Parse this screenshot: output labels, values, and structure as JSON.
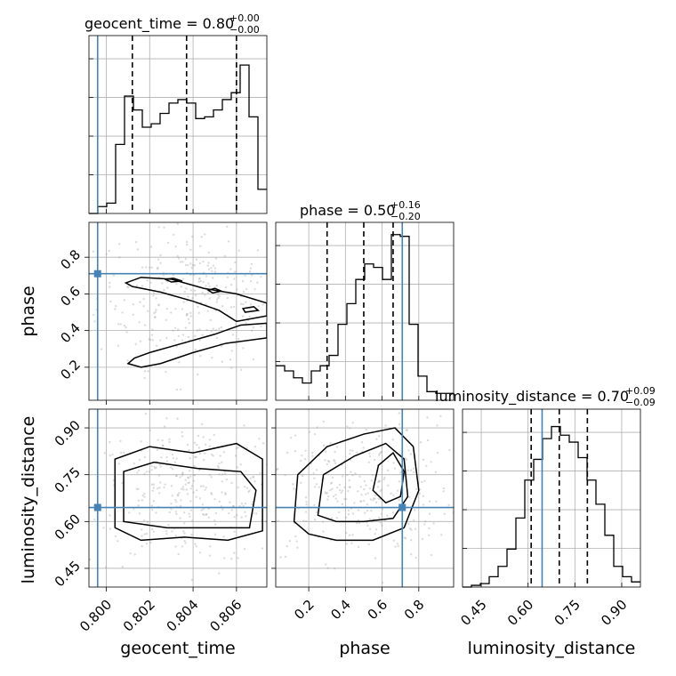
{
  "chart_data": {
    "type": "corner",
    "parameters": [
      "geocent_time",
      "phase",
      "luminosity_distance"
    ],
    "truths": {
      "geocent_time": 0.7996,
      "phase": 0.71,
      "luminosity_distance": 0.645
    },
    "titles": [
      {
        "param": "geocent_time",
        "text": "geocent_time = 0.80",
        "plus": "+0.00",
        "minus": "−0.00"
      },
      {
        "param": "phase",
        "text": "phase = 0.50",
        "plus": "+0.16",
        "minus": "−0.20"
      },
      {
        "param": "luminosity_distance",
        "text": "luminosity_distance = 0.70",
        "plus": "+0.09",
        "minus": "−0.09"
      }
    ],
    "axis_labels": {
      "geocent_time": "geocent_time",
      "phase": "phase",
      "luminosity_distance": "luminosity_distance"
    },
    "ranges": {
      "geocent_time": [
        0.7992,
        0.8074
      ],
      "phase": [
        0.02,
        0.99
      ],
      "luminosity_distance": [
        0.39,
        0.96
      ]
    },
    "ticks": {
      "geocent_time": {
        "values": [
          0.8,
          0.802,
          0.804,
          0.806
        ],
        "labels": [
          "0.800",
          "0.802",
          "0.804",
          "0.806"
        ]
      },
      "phase_x": {
        "values": [
          0.2,
          0.4,
          0.6,
          0.8
        ],
        "labels": [
          "0.2",
          "0.4",
          "0.6",
          "0.8"
        ]
      },
      "phase_y": {
        "values": [
          0.2,
          0.4,
          0.6,
          0.8
        ],
        "labels": [
          "0.2",
          "0.4",
          "0.6",
          "0.8"
        ]
      },
      "luminosity_distance": {
        "values": [
          0.45,
          0.6,
          0.75,
          0.9
        ],
        "labels": [
          "0.45",
          "0.60",
          "0.75",
          "0.90"
        ]
      }
    },
    "quantiles": {
      "geocent_time": [
        0.8012,
        0.8037,
        0.806
      ],
      "phase": [
        0.3,
        0.5,
        0.66
      ],
      "luminosity_distance": [
        0.61,
        0.7,
        0.79
      ]
    },
    "histograms": {
      "geocent_time": [
        0.0,
        0.04,
        0.06,
        0.4,
        0.68,
        0.6,
        0.5,
        0.52,
        0.58,
        0.64,
        0.66,
        0.64,
        0.55,
        0.56,
        0.6,
        0.66,
        0.7,
        0.86,
        0.56,
        0.14
      ],
      "phase": [
        0.2,
        0.17,
        0.13,
        0.1,
        0.17,
        0.2,
        0.26,
        0.44,
        0.56,
        0.7,
        0.79,
        0.77,
        0.7,
        0.96,
        0.95,
        0.44,
        0.14,
        0.05,
        0.04,
        0.04
      ],
      "luminosity_distance": [
        0.0,
        0.01,
        0.02,
        0.06,
        0.12,
        0.22,
        0.4,
        0.62,
        0.74,
        0.86,
        0.93,
        0.88,
        0.84,
        0.75,
        0.62,
        0.48,
        0.3,
        0.12,
        0.06,
        0.03
      ]
    },
    "density_contours": {
      "phase_vs_geocent_time": [
        [
          [
            0.8009,
            0.66
          ],
          [
            0.8016,
            0.69
          ],
          [
            0.803,
            0.68
          ],
          [
            0.8045,
            0.63
          ],
          [
            0.806,
            0.6
          ],
          [
            0.8074,
            0.55
          ],
          [
            0.8074,
            0.48
          ],
          [
            0.806,
            0.45
          ],
          [
            0.8052,
            0.51
          ],
          [
            0.804,
            0.56
          ],
          [
            0.8025,
            0.61
          ],
          [
            0.8012,
            0.64
          ]
        ],
        [
          [
            0.8013,
            0.25
          ],
          [
            0.802,
            0.28
          ],
          [
            0.8035,
            0.33
          ],
          [
            0.805,
            0.38
          ],
          [
            0.8062,
            0.43
          ],
          [
            0.8074,
            0.44
          ],
          [
            0.8074,
            0.36
          ],
          [
            0.8055,
            0.33
          ],
          [
            0.804,
            0.28
          ],
          [
            0.8025,
            0.22
          ],
          [
            0.8016,
            0.2
          ],
          [
            0.801,
            0.22
          ]
        ],
        [
          [
            0.8027,
            0.68
          ],
          [
            0.8031,
            0.685
          ],
          [
            0.8035,
            0.67
          ],
          [
            0.803,
            0.665
          ]
        ],
        [
          [
            0.8047,
            0.62
          ],
          [
            0.805,
            0.63
          ],
          [
            0.8053,
            0.615
          ],
          [
            0.8049,
            0.605
          ]
        ],
        [
          [
            0.8063,
            0.52
          ],
          [
            0.8068,
            0.53
          ],
          [
            0.807,
            0.51
          ],
          [
            0.8064,
            0.5
          ]
        ]
      ],
      "luminosity_distance_vs_geocent_time": [
        [
          [
            0.8004,
            0.58
          ],
          [
            0.8004,
            0.8
          ],
          [
            0.802,
            0.84
          ],
          [
            0.804,
            0.82
          ],
          [
            0.806,
            0.85
          ],
          [
            0.8072,
            0.8
          ],
          [
            0.8072,
            0.57
          ],
          [
            0.8056,
            0.54
          ],
          [
            0.8036,
            0.55
          ],
          [
            0.8016,
            0.54
          ]
        ],
        [
          [
            0.8008,
            0.6
          ],
          [
            0.8008,
            0.76
          ],
          [
            0.8022,
            0.79
          ],
          [
            0.8042,
            0.77
          ],
          [
            0.8062,
            0.76
          ],
          [
            0.8069,
            0.7
          ],
          [
            0.8066,
            0.58
          ],
          [
            0.8048,
            0.58
          ],
          [
            0.8028,
            0.58
          ]
        ]
      ],
      "luminosity_distance_vs_phase": [
        [
          [
            0.12,
            0.6
          ],
          [
            0.14,
            0.75
          ],
          [
            0.3,
            0.84
          ],
          [
            0.5,
            0.88
          ],
          [
            0.67,
            0.9
          ],
          [
            0.77,
            0.84
          ],
          [
            0.8,
            0.7
          ],
          [
            0.72,
            0.58
          ],
          [
            0.55,
            0.54
          ],
          [
            0.35,
            0.54
          ],
          [
            0.2,
            0.56
          ]
        ],
        [
          [
            0.25,
            0.62
          ],
          [
            0.28,
            0.75
          ],
          [
            0.45,
            0.81
          ],
          [
            0.62,
            0.85
          ],
          [
            0.72,
            0.8
          ],
          [
            0.74,
            0.68
          ],
          [
            0.66,
            0.61
          ],
          [
            0.5,
            0.6
          ],
          [
            0.35,
            0.6
          ]
        ],
        [
          [
            0.55,
            0.7
          ],
          [
            0.58,
            0.78
          ],
          [
            0.66,
            0.82
          ],
          [
            0.72,
            0.76
          ],
          [
            0.7,
            0.68
          ],
          [
            0.62,
            0.66
          ]
        ]
      ]
    }
  }
}
